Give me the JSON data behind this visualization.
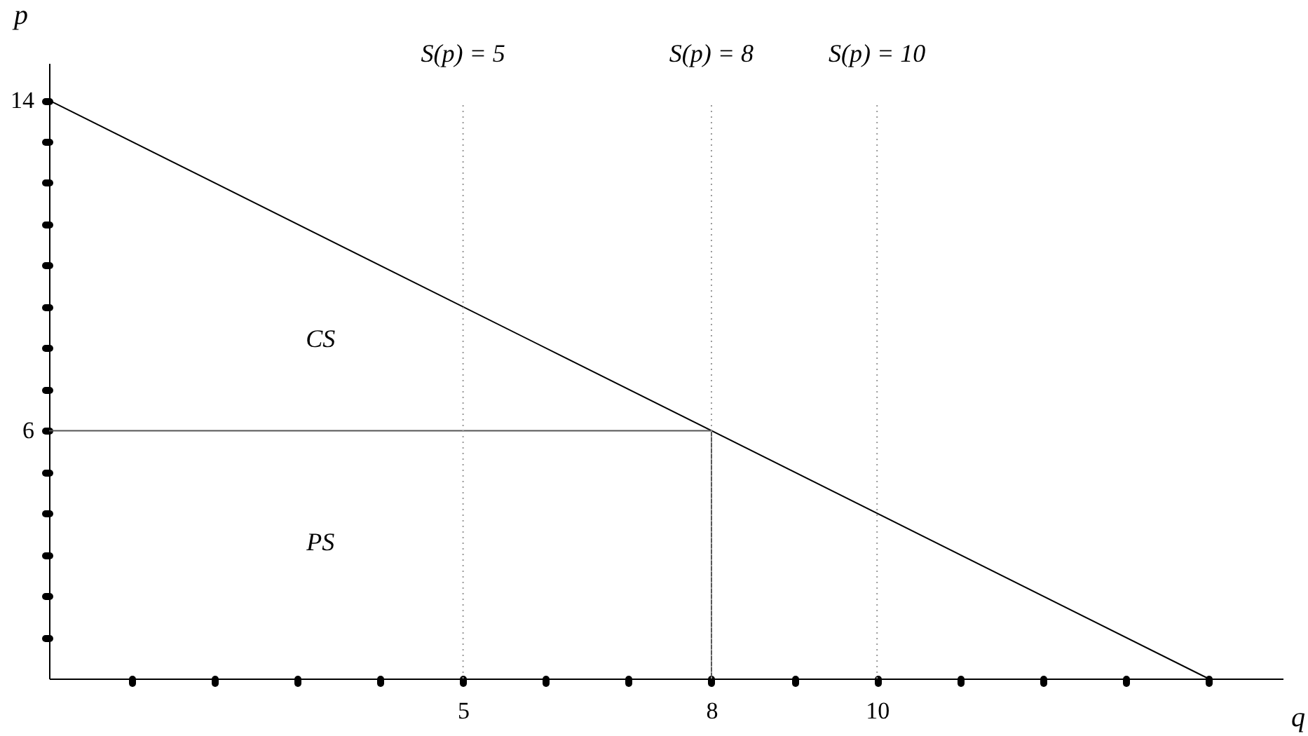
{
  "chart_data": {
    "type": "line",
    "xlabel": "q",
    "ylabel": "p",
    "xlim": [
      0,
      14.9
    ],
    "ylim": [
      0,
      14.9
    ],
    "xticks": [
      {
        "value": 1,
        "label": null
      },
      {
        "value": 2,
        "label": null
      },
      {
        "value": 3,
        "label": null
      },
      {
        "value": 4,
        "label": null
      },
      5,
      {
        "value": 6,
        "label": null
      },
      {
        "value": 7,
        "label": null
      },
      8,
      {
        "value": 9,
        "label": null
      },
      10,
      {
        "value": 11,
        "label": null
      },
      {
        "value": 12,
        "label": null
      },
      {
        "value": 13,
        "label": null
      },
      {
        "value": 14,
        "label": null
      }
    ],
    "yticks": [
      {
        "value": 1,
        "label": null
      },
      {
        "value": 2,
        "label": null
      },
      {
        "value": 3,
        "label": null
      },
      {
        "value": 4,
        "label": null
      },
      {
        "value": 5,
        "label": null
      },
      6,
      {
        "value": 7,
        "label": null
      },
      {
        "value": 8,
        "label": null
      },
      {
        "value": 9,
        "label": null
      },
      {
        "value": 10,
        "label": null
      },
      {
        "value": 11,
        "label": null
      },
      {
        "value": 12,
        "label": null
      },
      {
        "value": 13,
        "label": null
      },
      14
    ],
    "series": [
      {
        "type": "line",
        "color": "#000000",
        "x": [
          0,
          14
        ],
        "values": [
          14,
          0
        ]
      },
      {
        "type": "line",
        "color": "#555555",
        "x": [
          0,
          8,
          8
        ],
        "values": [
          6,
          6,
          0
        ]
      }
    ],
    "ref_lines": [
      {
        "axis": "x",
        "value": 5,
        "label": "S(p) = 5",
        "color": "#999999",
        "line_style": "dotted"
      },
      {
        "axis": "x",
        "value": 8,
        "label": "S(p) = 8",
        "color": "#999999",
        "line_style": "dotted"
      },
      {
        "axis": "x",
        "value": 10,
        "label": "S(p) = 10",
        "color": "#999999",
        "line_style": "dotted"
      }
    ],
    "annotations": [
      "CS",
      "PS"
    ],
    "grid": false,
    "marker": "none",
    "line_style": "solid"
  }
}
